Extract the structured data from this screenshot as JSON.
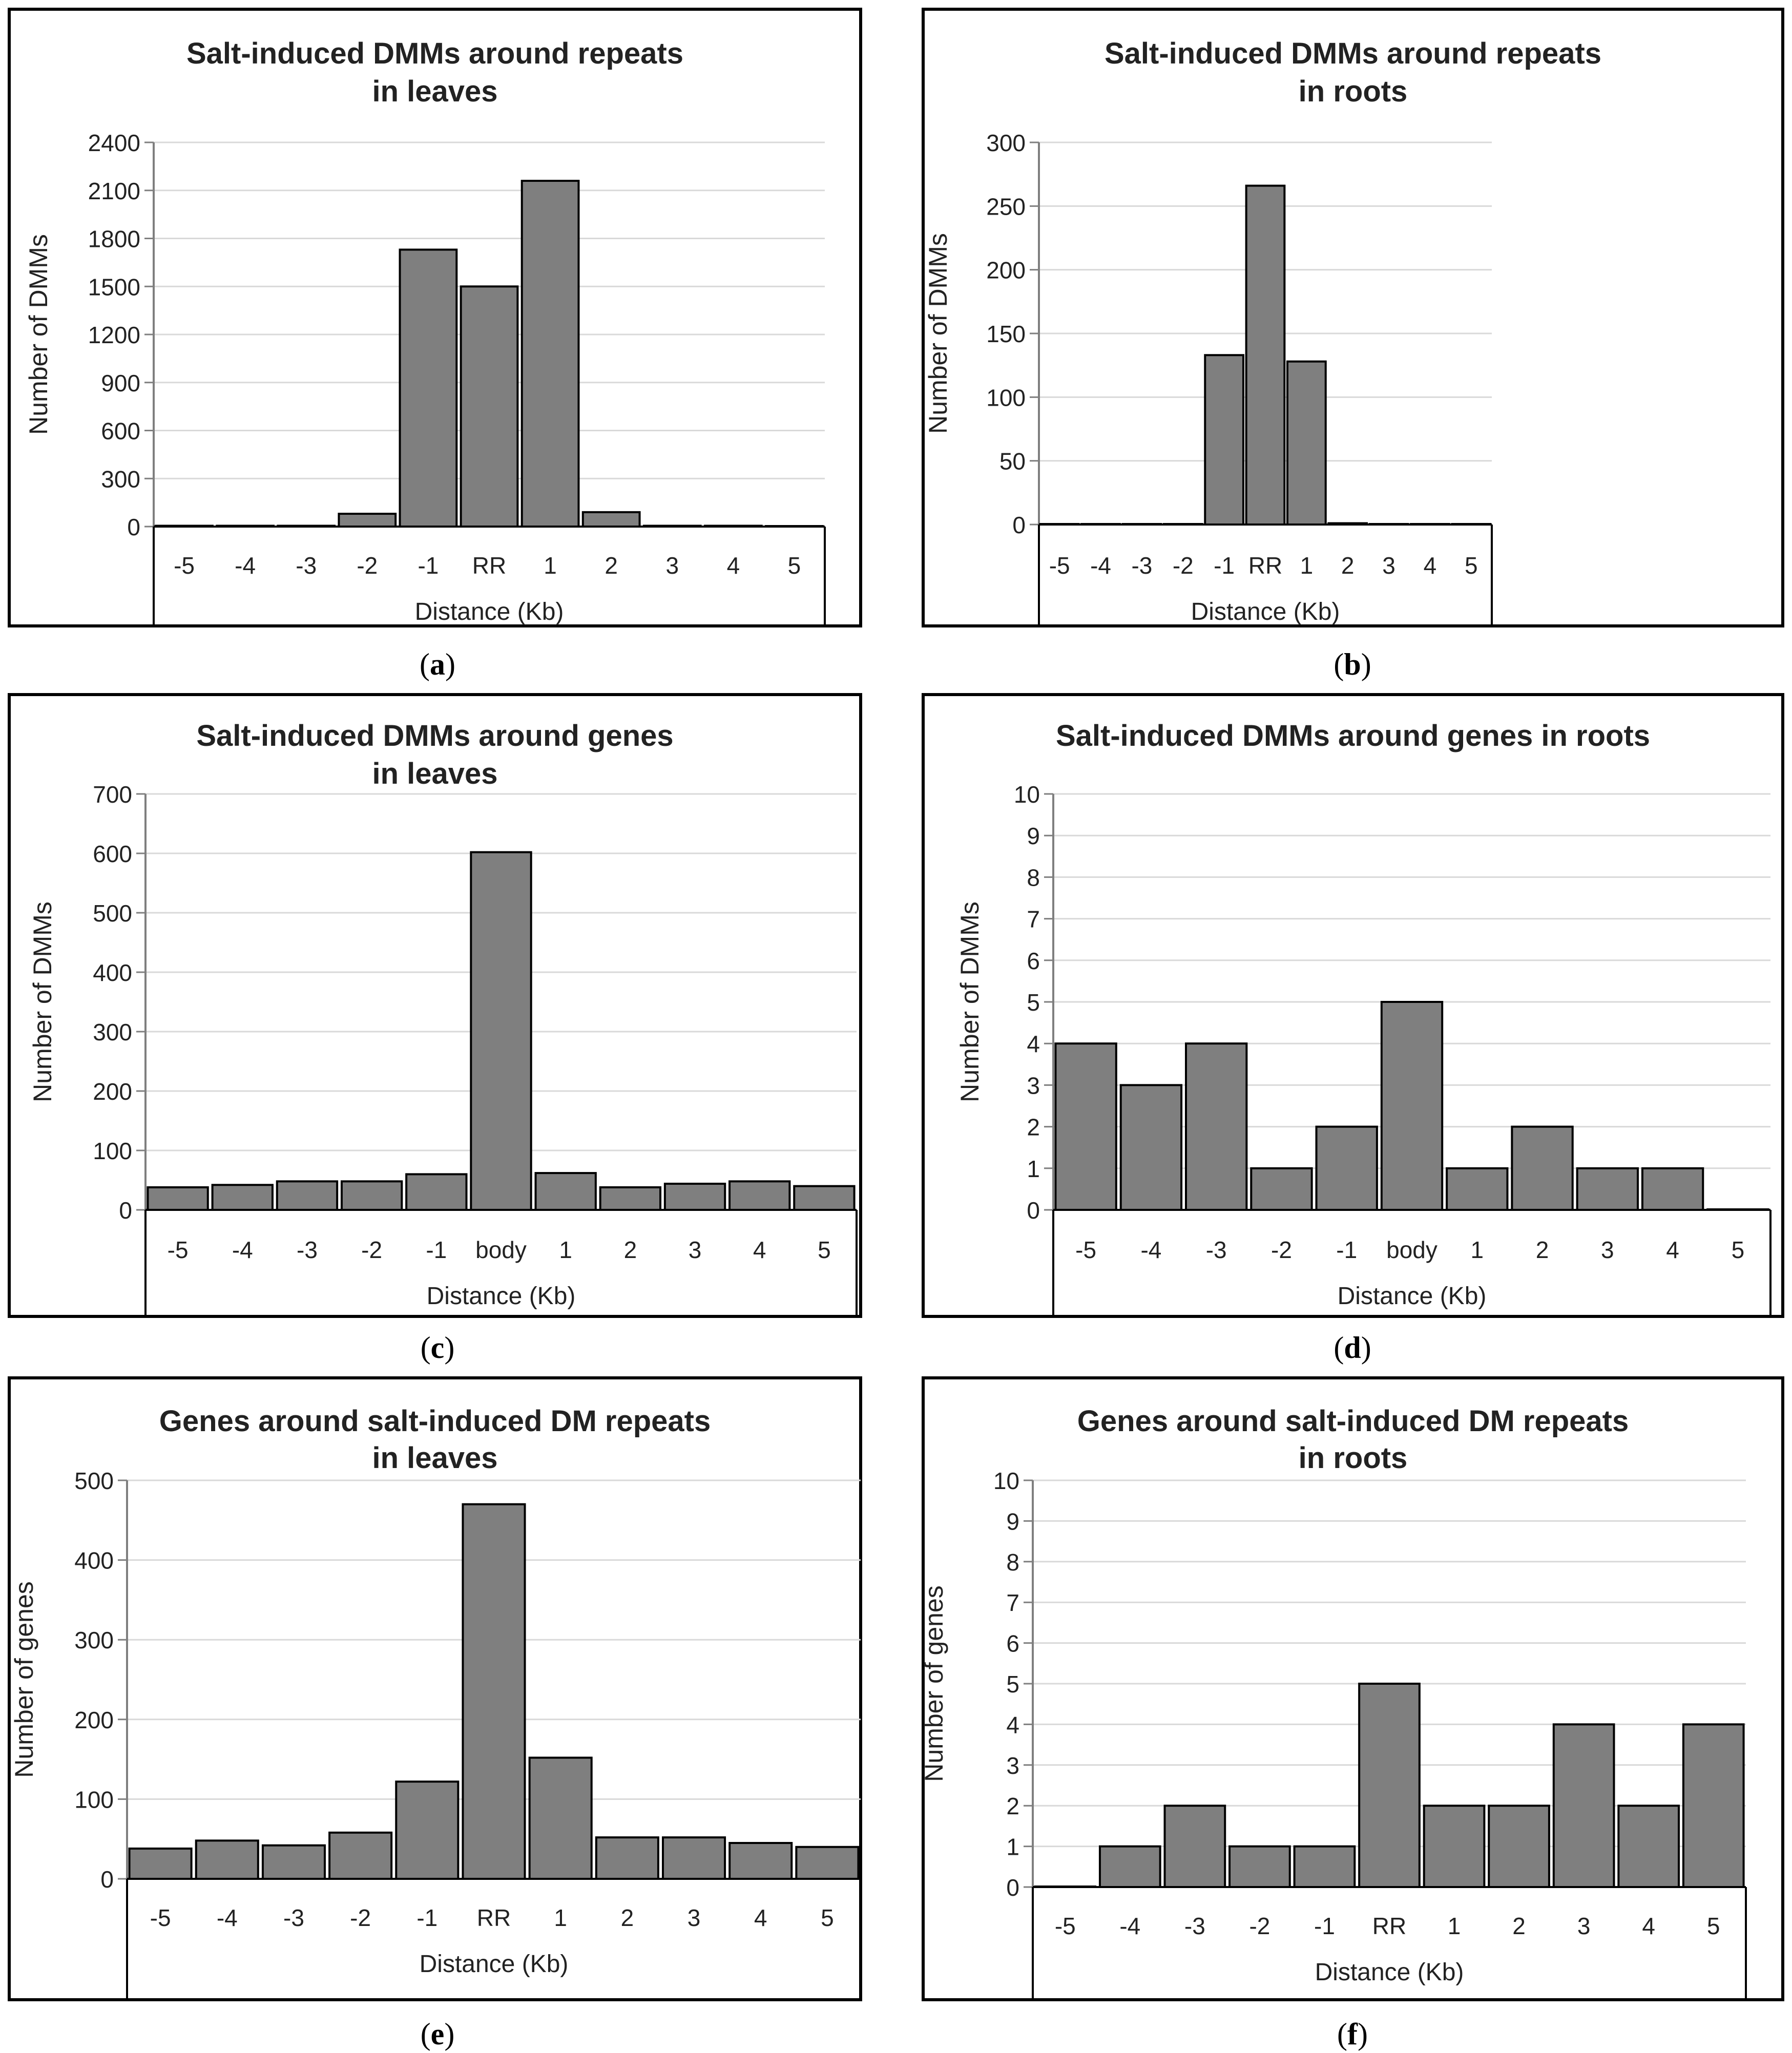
{
  "colors": {
    "bar_fill": "#7f7f7f",
    "bar_stroke": "#000000",
    "grid": "#d9d9d9",
    "axis": "#7f7f7f",
    "frame": "#000000",
    "text": "#222222"
  },
  "chart_data": [
    {
      "panel": "a",
      "type": "bar",
      "title": [
        "Salt-induced DMMs around repeats",
        "in leaves"
      ],
      "ylabel": "Number of DMMs",
      "xlabel": "Distance (Kb)",
      "categories": [
        "-5",
        "-4",
        "-3",
        "-2",
        "-1",
        "RR",
        "1",
        "2",
        "3",
        "4",
        "5"
      ],
      "values": [
        5,
        5,
        5,
        80,
        1730,
        1500,
        2160,
        90,
        5,
        5,
        0
      ],
      "ylim": [
        0,
        2400
      ],
      "yticks": [
        0,
        300,
        600,
        900,
        1200,
        1500,
        1800,
        2100,
        2400
      ],
      "grid": true
    },
    {
      "panel": "b",
      "type": "bar",
      "title": [
        "Salt-induced DMMs around repeats",
        "in roots"
      ],
      "ylabel": "Number of DMMs",
      "xlabel": "Distance (Kb)",
      "categories": [
        "-5",
        "-4",
        "-3",
        "-2",
        "-1",
        "RR",
        "1",
        "2",
        "3",
        "4",
        "5"
      ],
      "values": [
        0,
        0,
        0,
        0,
        133,
        266,
        128,
        1,
        0,
        0,
        0
      ],
      "ylim": [
        0,
        300
      ],
      "yticks": [
        0,
        50,
        100,
        150,
        200,
        250,
        300
      ],
      "grid": true
    },
    {
      "panel": "c",
      "type": "bar",
      "title": [
        "Salt-induced DMMs around genes",
        "in leaves"
      ],
      "ylabel": "Number of DMMs",
      "xlabel": "Distance (Kb)",
      "categories": [
        "-5",
        "-4",
        "-3",
        "-2",
        "-1",
        "body",
        "1",
        "2",
        "3",
        "4",
        "5"
      ],
      "values": [
        38,
        42,
        48,
        48,
        60,
        602,
        62,
        38,
        44,
        48,
        40
      ],
      "ylim": [
        0,
        700
      ],
      "yticks": [
        0,
        100,
        200,
        300,
        400,
        500,
        600,
        700
      ],
      "grid": true
    },
    {
      "panel": "d",
      "type": "bar",
      "title": [
        "Salt-induced DMMs around genes in roots"
      ],
      "ylabel": "Number of DMMs",
      "xlabel": "Distance (Kb)",
      "categories": [
        "-5",
        "-4",
        "-3",
        "-2",
        "-1",
        "body",
        "1",
        "2",
        "3",
        "4",
        "5"
      ],
      "values": [
        4,
        3,
        4,
        1,
        2,
        5,
        1,
        2,
        1,
        1,
        0
      ],
      "ylim": [
        0,
        10
      ],
      "yticks": [
        0,
        1,
        2,
        3,
        4,
        5,
        6,
        7,
        8,
        9,
        10
      ],
      "grid": true
    },
    {
      "panel": "e",
      "type": "bar",
      "title": [
        "Genes around salt-induced DM repeats",
        "in leaves"
      ],
      "ylabel": "Number of genes",
      "xlabel": "Distance (Kb)",
      "categories": [
        "-5",
        "-4",
        "-3",
        "-2",
        "-1",
        "RR",
        "1",
        "2",
        "3",
        "4",
        "5"
      ],
      "values": [
        38,
        48,
        42,
        58,
        122,
        470,
        152,
        52,
        52,
        45,
        40
      ],
      "ylim": [
        0,
        500
      ],
      "yticks": [
        0,
        100,
        200,
        300,
        400,
        500
      ],
      "grid": true
    },
    {
      "panel": "f",
      "type": "bar",
      "title": [
        "Genes around salt-induced DM repeats",
        "in roots"
      ],
      "ylabel": "Number of genes",
      "xlabel": "Distance (Kb)",
      "categories": [
        "-5",
        "-4",
        "-3",
        "-2",
        "-1",
        "RR",
        "1",
        "2",
        "3",
        "4",
        "5"
      ],
      "values": [
        0,
        1,
        2,
        1,
        1,
        5,
        2,
        2,
        4,
        2,
        4
      ],
      "ylim": [
        0,
        10
      ],
      "yticks": [
        0,
        1,
        2,
        3,
        4,
        5,
        6,
        7,
        8,
        9,
        10
      ],
      "grid": true
    }
  ],
  "panel_labels": [
    "a",
    "b",
    "c",
    "d",
    "e",
    "f"
  ]
}
